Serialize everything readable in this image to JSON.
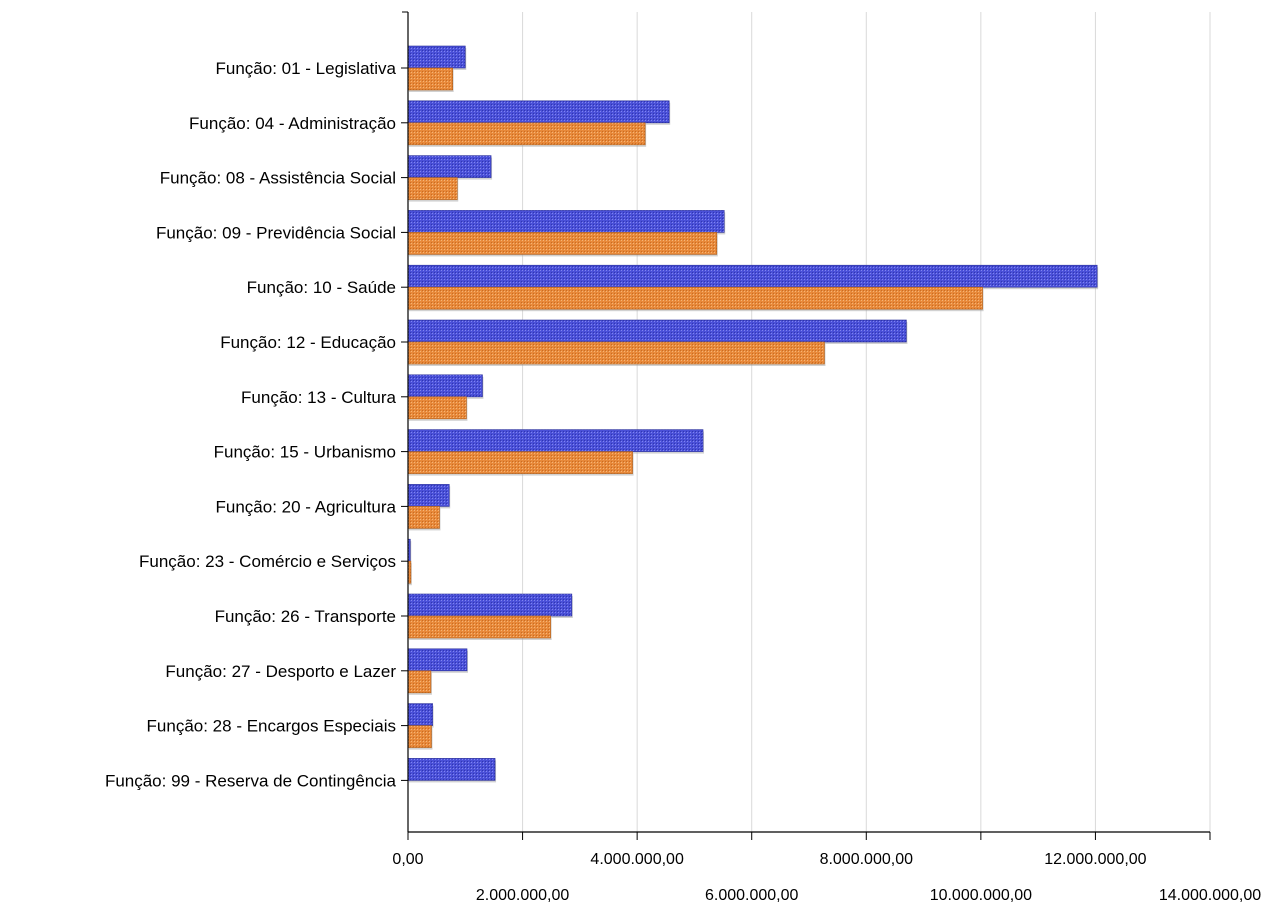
{
  "chart_data": {
    "type": "bar",
    "orientation": "horizontal",
    "categories": [
      "Função: 01 - Legislativa",
      "Função: 04 - Administração",
      "Função: 08 - Assistência Social",
      "Função: 09 - Previdência Social",
      "Função: 10 - Saúde",
      "Função: 12 - Educação",
      "Função: 13 - Cultura",
      "Função: 15 - Urbanismo",
      "Função: 20 - Agricultura",
      "Função: 23 - Comércio e Serviços",
      "Função: 26 - Transporte",
      "Função: 27 - Desporto e Lazer",
      "Função: 28 - Encargos Especiais",
      "Função: 99 - Reserva de Contingência"
    ],
    "series": [
      {
        "color": "#4a50d8",
        "values": [
          1000000,
          4560000,
          1450000,
          5520000,
          12030000,
          8700000,
          1300000,
          5150000,
          720000,
          40000,
          2860000,
          1030000,
          430000,
          1520000
        ]
      },
      {
        "color": "#e8893a",
        "values": [
          780000,
          4140000,
          860000,
          5390000,
          10030000,
          7270000,
          1020000,
          3920000,
          550000,
          50000,
          2490000,
          400000,
          410000,
          0
        ]
      }
    ],
    "xlim": [
      0,
      14000000
    ],
    "ticks": [
      0,
      2000000,
      4000000,
      6000000,
      8000000,
      10000000,
      12000000,
      14000000
    ],
    "tick_labels": [
      "0,00",
      "2.000.000,00",
      "4.000.000,00",
      "6.000.000,00",
      "8.000.000,00",
      "10.000.000,00",
      "12.000.000,00",
      "14.000.000,00"
    ],
    "grid": true
  }
}
